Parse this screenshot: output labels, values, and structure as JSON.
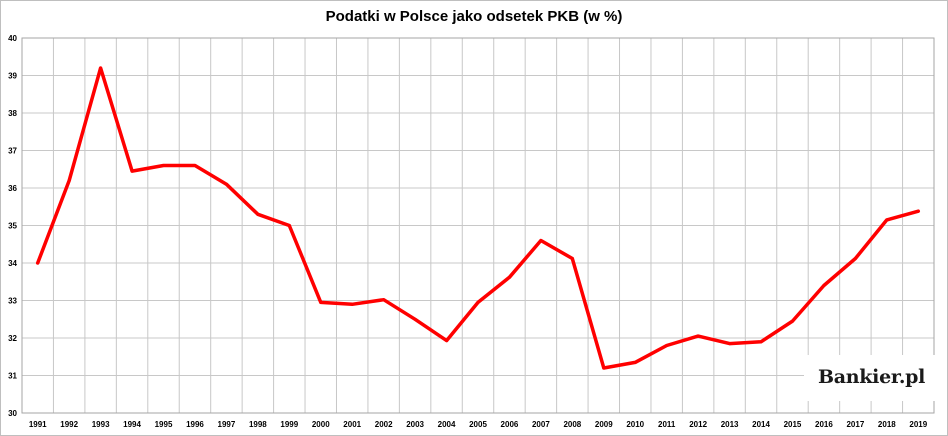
{
  "chart_data": {
    "type": "line",
    "title": "Podatki w Polsce jako odsetek PKB (w %)",
    "xlabel": "",
    "ylabel": "",
    "categories": [
      "1991",
      "1992",
      "1993",
      "1994",
      "1995",
      "1996",
      "1997",
      "1998",
      "1999",
      "2000",
      "2001",
      "2002",
      "2003",
      "2004",
      "2005",
      "2006",
      "2007",
      "2008",
      "2009",
      "2010",
      "2011",
      "2012",
      "2013",
      "2014",
      "2015",
      "2016",
      "2017",
      "2018",
      "2019"
    ],
    "series": [
      {
        "values": [
          34.0,
          36.2,
          39.2,
          36.45,
          36.6,
          36.6,
          36.1,
          35.3,
          35.0,
          32.95,
          32.9,
          33.02,
          32.5,
          31.93,
          32.95,
          33.62,
          34.6,
          34.12,
          31.2,
          31.35,
          31.8,
          32.05,
          31.85,
          31.9,
          32.45,
          33.4,
          34.12,
          35.15,
          35.38
        ],
        "color": "#ff0000"
      }
    ],
    "ylim": [
      30,
      40
    ],
    "yticks": [
      30,
      31,
      32,
      33,
      34,
      35,
      36,
      37,
      38,
      39,
      40
    ],
    "grid": true,
    "legend": "none"
  },
  "watermark": {
    "text": "Bankier.pl"
  }
}
